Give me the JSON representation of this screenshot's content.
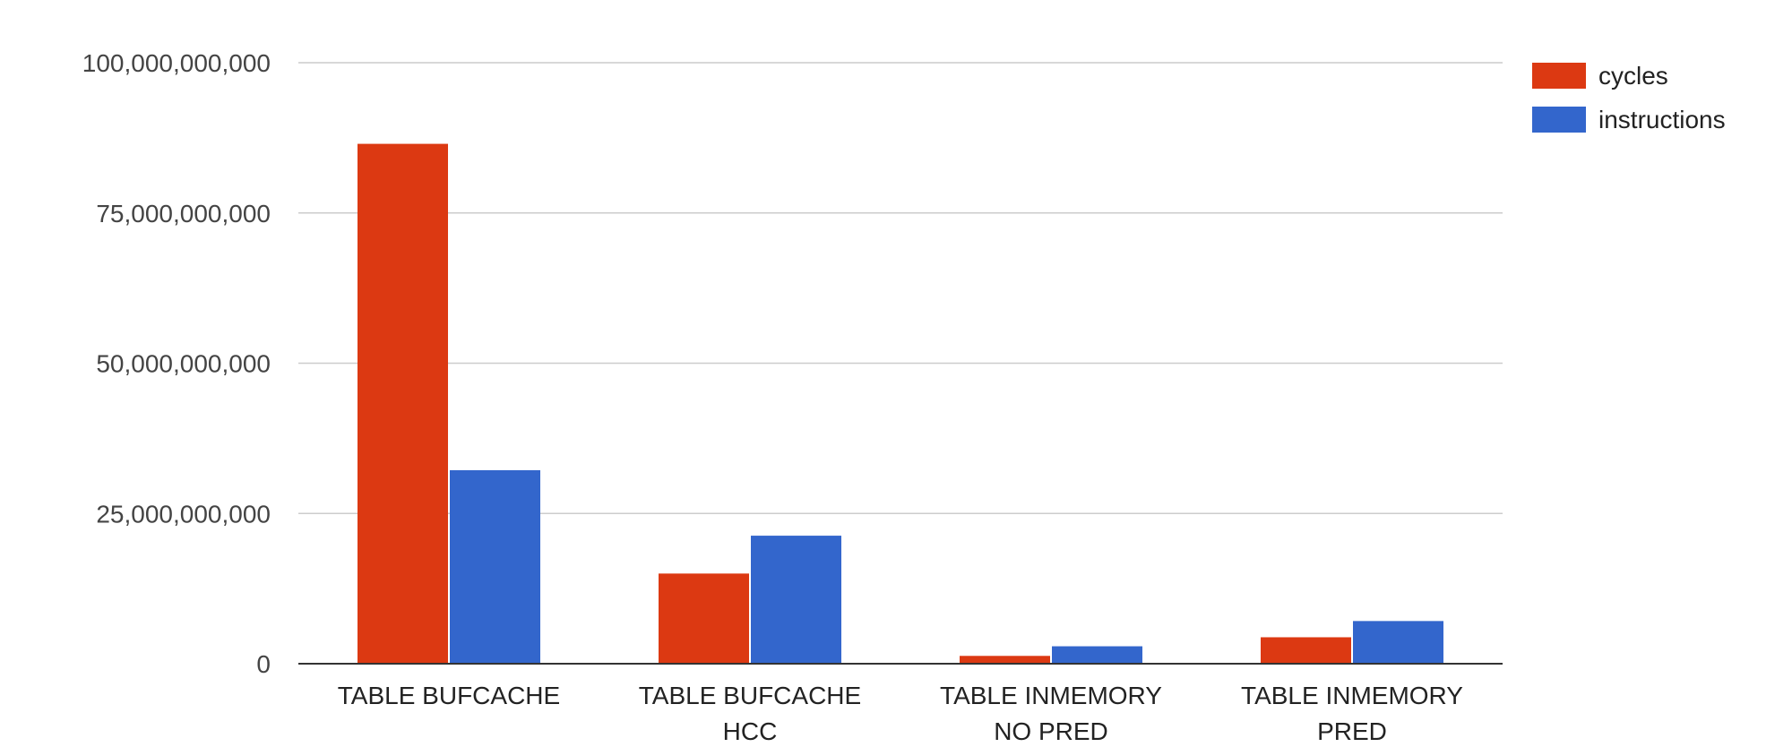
{
  "chart_data": {
    "type": "bar",
    "categories": [
      [
        "TABLE BUFCACHE"
      ],
      [
        "TABLE BUFCACHE",
        "HCC"
      ],
      [
        "TABLE INMEMORY",
        "NO PRED"
      ],
      [
        "TABLE INMEMORY",
        "PRED"
      ]
    ],
    "series": [
      {
        "name": "cycles",
        "color": "#dc3912",
        "values": [
          86500000000,
          15000000000,
          1300000000,
          4400000000
        ]
      },
      {
        "name": "instructions",
        "color": "#3366cc",
        "values": [
          32200000000,
          21300000000,
          2900000000,
          7100000000
        ]
      }
    ],
    "yticks": [
      "0",
      "25,000,000,000",
      "50,000,000,000",
      "75,000,000,000",
      "100,000,000,000"
    ],
    "ylim": [
      0,
      100000000000
    ],
    "grid": true,
    "legend_position": "top-right"
  }
}
